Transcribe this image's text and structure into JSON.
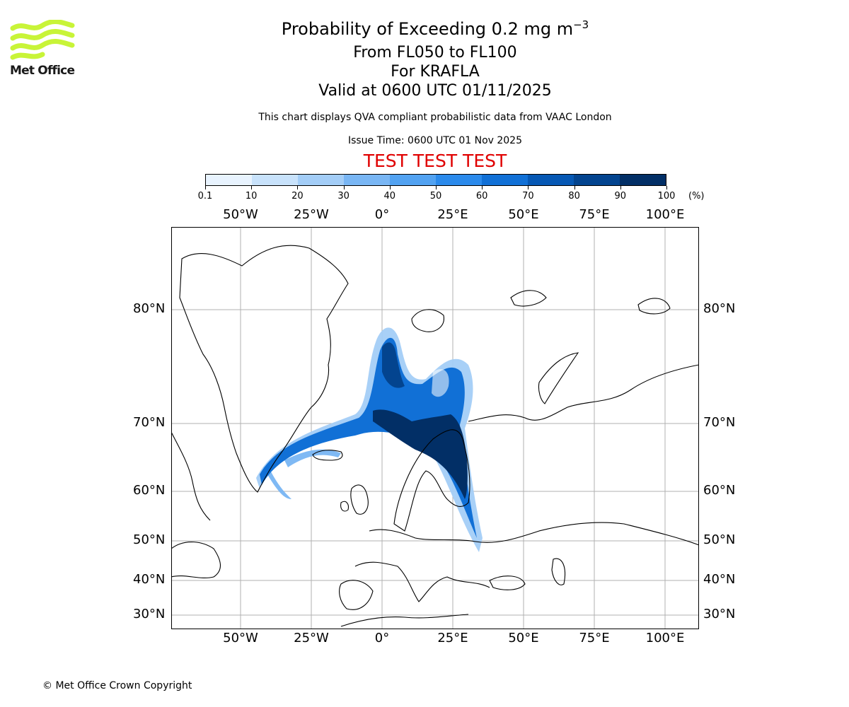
{
  "logo": {
    "brand": "Met Office",
    "color": "#c8f438"
  },
  "title": {
    "main": "Probability of Exceeding 0.2 mg m",
    "superscript": "−3"
  },
  "subtitle": {
    "levels": "From FL050 to FL100",
    "volcano": "For KRAFLA",
    "valid": "Valid at 0600 UTC 01/11/2025"
  },
  "disclaimer": "This chart displays QVA compliant probabilistic data from VAAC London",
  "issue_time": "Issue Time: 0600 UTC 01 Nov 2025",
  "test_banner": "TEST TEST TEST",
  "test_color": "#e00000",
  "colorbar": {
    "ticks": [
      "0.1",
      "10",
      "20",
      "30",
      "40",
      "50",
      "60",
      "70",
      "80",
      "90",
      "100"
    ],
    "unit": "(%)",
    "colors": [
      "#e8f3fe",
      "#c8e2fb",
      "#a3cdf7",
      "#79b6f4",
      "#52a2f1",
      "#2b8aeb",
      "#1170d6",
      "#0658b4",
      "#03448f",
      "#022f66"
    ]
  },
  "map": {
    "lon_labels": [
      "50°W",
      "25°W",
      "0°",
      "25°E",
      "50°E",
      "75°E",
      "100°E"
    ],
    "lat_labels": [
      "80°N",
      "70°N",
      "60°N",
      "50°N",
      "40°N",
      "30°N"
    ],
    "gridline_color": "#b0b0b0",
    "land_outline_color": "#000000"
  },
  "footer": {
    "copyright": "© Met Office Crown Copyright"
  }
}
